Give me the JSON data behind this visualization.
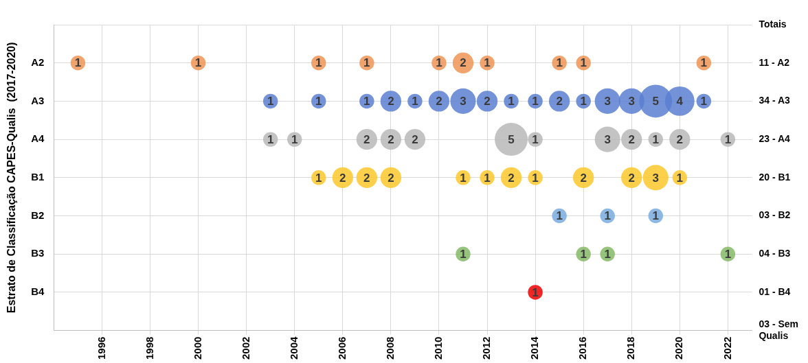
{
  "chart_data": {
    "type": "bubble",
    "orientation": "horizontal",
    "ylabel": "Estrato de Classificação CAPES-Qualis  (2017-2020)",
    "xlim": [
      1994,
      2023
    ],
    "xticks": [
      1996,
      1998,
      2000,
      2002,
      2004,
      2006,
      2008,
      2010,
      2012,
      2014,
      2016,
      2018,
      2020,
      2022
    ],
    "categories": [
      null,
      "A2",
      "A3",
      "A4",
      "B1",
      "B2",
      "B3",
      "B4",
      null
    ],
    "y2_categories": [
      "Totais",
      "11 - A2",
      "34 - A3",
      "23 - A4",
      "20 - B1",
      "03 - B2",
      "04 - B3",
      "01 - B4",
      "03 - Sem Qualis"
    ],
    "grid": true,
    "legend": false,
    "series": [
      {
        "values": [
          null,
          1995,
          null,
          null,
          null,
          null,
          null,
          null,
          null
        ],
        "sizes": [
          null,
          0.2,
          null,
          null,
          null,
          null,
          null,
          null,
          null
        ],
        "colors": [
          null,
          "#ef9455",
          null,
          null,
          null,
          null,
          null,
          null,
          null
        ]
      },
      {
        "values": [
          null,
          2000,
          null,
          null,
          null,
          null,
          null,
          null,
          null
        ],
        "sizes": [
          null,
          0.2,
          null,
          null,
          null,
          null,
          null,
          null,
          null
        ],
        "colors": [
          null,
          "#ef9455",
          null,
          null,
          null,
          null,
          null,
          null,
          null
        ]
      },
      {
        "values": [
          null,
          null,
          2003,
          2003,
          null,
          null,
          null,
          null,
          null
        ],
        "sizes": [
          null,
          null,
          0.2,
          0.2,
          null,
          null,
          null,
          null,
          null
        ],
        "colors": [
          null,
          null,
          "#5a7fd0",
          "#b8b8b8",
          null,
          null,
          null,
          null,
          null
        ]
      },
      {
        "values": [
          null,
          null,
          null,
          2004,
          null,
          null,
          null,
          null,
          null
        ],
        "sizes": [
          null,
          null,
          null,
          0.2,
          null,
          null,
          null,
          null,
          null
        ],
        "colors": [
          null,
          null,
          null,
          "#b8b8b8",
          null,
          null,
          null,
          null,
          null
        ]
      },
      {
        "values": [
          null,
          2005,
          2005,
          null,
          2005,
          null,
          null,
          null,
          null
        ],
        "sizes": [
          null,
          0.2,
          0.2,
          null,
          0.2,
          null,
          null,
          null,
          null
        ],
        "colors": [
          null,
          "#ef9455",
          "#5a7fd0",
          null,
          "#fdc82c",
          null,
          null,
          null,
          null
        ]
      },
      {
        "values": [
          null,
          null,
          null,
          null,
          2006,
          null,
          null,
          null,
          null
        ],
        "sizes": [
          null,
          null,
          null,
          null,
          0.4,
          null,
          null,
          null,
          null
        ],
        "colors": [
          null,
          null,
          null,
          null,
          "#fdc82c",
          null,
          null,
          null,
          null
        ]
      },
      {
        "values": [
          null,
          2007,
          2007,
          2007,
          2007,
          null,
          null,
          null,
          null
        ],
        "sizes": [
          null,
          0.2,
          0.2,
          0.4,
          0.4,
          null,
          null,
          null,
          null
        ],
        "colors": [
          null,
          "#ef9455",
          "#5a7fd0",
          "#b8b8b8",
          "#fdc82c",
          null,
          null,
          null,
          null
        ]
      },
      {
        "values": [
          null,
          null,
          2008,
          2008,
          2008,
          null,
          null,
          null,
          null
        ],
        "sizes": [
          null,
          null,
          0.4,
          0.4,
          0.4,
          null,
          null,
          null,
          null
        ],
        "colors": [
          null,
          null,
          "#5a7fd0",
          "#b8b8b8",
          "#fdc82c",
          null,
          null,
          null,
          null
        ]
      },
      {
        "values": [
          null,
          null,
          2009,
          2009,
          null,
          null,
          null,
          null,
          null
        ],
        "sizes": [
          null,
          null,
          0.2,
          0.4,
          null,
          null,
          null,
          null,
          null
        ],
        "colors": [
          null,
          null,
          "#5a7fd0",
          "#b8b8b8",
          null,
          null,
          null,
          null,
          null
        ]
      },
      {
        "values": [
          null,
          2010,
          2010,
          null,
          null,
          null,
          null,
          null,
          null
        ],
        "sizes": [
          null,
          0.2,
          0.4,
          null,
          null,
          null,
          null,
          null,
          null
        ],
        "colors": [
          null,
          "#ef9455",
          "#5a7fd0",
          null,
          null,
          null,
          null,
          null,
          null
        ]
      },
      {
        "values": [
          null,
          2011,
          2011,
          null,
          2011,
          null,
          2011,
          null,
          null
        ],
        "sizes": [
          null,
          0.4,
          0.6,
          null,
          0.2,
          null,
          0.2,
          null,
          null
        ],
        "colors": [
          null,
          "#ef9455",
          "#5a7fd0",
          null,
          "#fdc82c",
          null,
          "#84ba65",
          null,
          null
        ]
      },
      {
        "values": [
          null,
          2012,
          2012,
          null,
          2012,
          null,
          null,
          null,
          null
        ],
        "sizes": [
          null,
          0.2,
          0.4,
          null,
          0.2,
          null,
          null,
          null,
          null
        ],
        "colors": [
          null,
          "#ef9455",
          "#5a7fd0",
          null,
          "#fdc82c",
          null,
          null,
          null,
          null
        ]
      },
      {
        "values": [
          null,
          null,
          2013,
          2013,
          2013,
          null,
          null,
          null,
          null
        ],
        "sizes": [
          null,
          null,
          0.2,
          1,
          0.4,
          null,
          null,
          null,
          null
        ],
        "colors": [
          null,
          null,
          "#5a7fd0",
          "#b8b8b8",
          "#fdc82c",
          null,
          null,
          null,
          null
        ]
      },
      {
        "values": [
          null,
          null,
          2014,
          2014,
          2014,
          null,
          null,
          2014,
          null
        ],
        "sizes": [
          null,
          null,
          0.2,
          0.2,
          0.2,
          null,
          null,
          0.2,
          null
        ],
        "colors": [
          null,
          null,
          "#5a7fd0",
          "#b8b8b8",
          "#fdc82c",
          null,
          null,
          "#ee0000",
          null
        ]
      },
      {
        "values": [
          null,
          2015,
          2015,
          null,
          null,
          2015,
          null,
          null,
          null
        ],
        "sizes": [
          null,
          0.2,
          0.4,
          null,
          null,
          0.2,
          null,
          null,
          null
        ],
        "colors": [
          null,
          "#ef9455",
          "#5a7fd0",
          null,
          null,
          "#79acdf",
          null,
          null,
          null
        ]
      },
      {
        "values": [
          null,
          2016,
          2016,
          null,
          2016,
          null,
          2016,
          null,
          null
        ],
        "sizes": [
          null,
          0.2,
          0.2,
          null,
          0.4,
          null,
          0.2,
          null,
          null
        ],
        "colors": [
          null,
          "#ef9455",
          "#5a7fd0",
          null,
          "#fdc82c",
          null,
          "#84ba65",
          null,
          null
        ]
      },
      {
        "values": [
          null,
          null,
          2017,
          2017,
          null,
          2017,
          2017,
          null,
          null
        ],
        "sizes": [
          null,
          null,
          0.6,
          0.6,
          null,
          0.2,
          0.2,
          null,
          null
        ],
        "colors": [
          null,
          null,
          "#5a7fd0",
          "#b8b8b8",
          null,
          "#79acdf",
          "#84ba65",
          null,
          null
        ]
      },
      {
        "values": [
          null,
          null,
          2018,
          2018,
          2018,
          null,
          null,
          null,
          null
        ],
        "sizes": [
          null,
          null,
          0.6,
          0.4,
          0.4,
          null,
          null,
          null,
          null
        ],
        "colors": [
          null,
          null,
          "#5a7fd0",
          "#b8b8b8",
          "#fdc82c",
          null,
          null,
          null,
          null
        ]
      },
      {
        "values": [
          null,
          null,
          2019,
          2019,
          2019,
          2019,
          null,
          null,
          null
        ],
        "sizes": [
          null,
          null,
          1,
          0.2,
          0.6,
          0.2,
          null,
          null,
          null
        ],
        "colors": [
          null,
          null,
          "#5a7fd0",
          "#b8b8b8",
          "#fdc82c",
          "#79acdf",
          null,
          null,
          null
        ]
      },
      {
        "values": [
          null,
          null,
          2020,
          2020,
          2020,
          null,
          null,
          null,
          null
        ],
        "sizes": [
          null,
          null,
          0.8,
          0.4,
          0.2,
          null,
          null,
          null,
          null
        ],
        "colors": [
          null,
          null,
          "#5a7fd0",
          "#b8b8b8",
          "#fdc82c",
          null,
          null,
          null,
          null
        ]
      },
      {
        "values": [
          null,
          2021,
          2021,
          null,
          null,
          null,
          null,
          null,
          null
        ],
        "sizes": [
          null,
          0.2,
          0.2,
          null,
          null,
          null,
          null,
          null,
          null
        ],
        "colors": [
          null,
          "#ef9455",
          "#5a7fd0",
          null,
          null,
          null,
          null,
          null,
          null
        ]
      },
      {
        "values": [
          null,
          null,
          null,
          2022,
          null,
          null,
          2022,
          null,
          null
        ],
        "sizes": [
          null,
          null,
          null,
          0.2,
          null,
          null,
          0.2,
          null,
          null
        ],
        "colors": [
          null,
          null,
          null,
          "#b8b8b8",
          null,
          null,
          "#84ba65",
          null,
          null
        ]
      }
    ],
    "annotations": [
      {
        "text": "1",
        "x": 1995,
        "y": "A2"
      },
      {
        "text": "1",
        "x": 2000,
        "y": "A2"
      },
      {
        "text": "1",
        "x": 2005,
        "y": "A2"
      },
      {
        "text": "1",
        "x": 2007,
        "y": "A2"
      },
      {
        "text": "1",
        "x": 2010,
        "y": "A2"
      },
      {
        "text": "2",
        "x": 2011,
        "y": "A2"
      },
      {
        "text": "1",
        "x": 2012,
        "y": "A2"
      },
      {
        "text": "1",
        "x": 2015,
        "y": "A2"
      },
      {
        "text": "1",
        "x": 2016,
        "y": "A2"
      },
      {
        "text": "1",
        "x": 2021,
        "y": "A2"
      },
      {
        "text": "1",
        "x": 2003,
        "y": "A3"
      },
      {
        "text": "1",
        "x": 2005,
        "y": "A3"
      },
      {
        "text": "1",
        "x": 2007,
        "y": "A3"
      },
      {
        "text": "2",
        "x": 2008,
        "y": "A3"
      },
      {
        "text": "1",
        "x": 2009,
        "y": "A3"
      },
      {
        "text": "2",
        "x": 2010,
        "y": "A3"
      },
      {
        "text": "3",
        "x": 2011,
        "y": "A3"
      },
      {
        "text": "2",
        "x": 2012,
        "y": "A3"
      },
      {
        "text": "1",
        "x": 2013,
        "y": "A3"
      },
      {
        "text": "1",
        "x": 2014,
        "y": "A3"
      },
      {
        "text": "2",
        "x": 2015,
        "y": "A3"
      },
      {
        "text": "1",
        "x": 2016,
        "y": "A3"
      },
      {
        "text": "3",
        "x": 2017,
        "y": "A3"
      },
      {
        "text": "3",
        "x": 2018,
        "y": "A3"
      },
      {
        "text": "5",
        "x": 2019,
        "y": "A3"
      },
      {
        "text": "4",
        "x": 2020,
        "y": "A3"
      },
      {
        "text": "1",
        "x": 2021,
        "y": "A3"
      },
      {
        "text": "1",
        "x": 2003,
        "y": "A4"
      },
      {
        "text": "1",
        "x": 2004,
        "y": "A4"
      },
      {
        "text": "2",
        "x": 2007,
        "y": "A4"
      },
      {
        "text": "2",
        "x": 2008,
        "y": "A4"
      },
      {
        "text": "2",
        "x": 2009,
        "y": "A4"
      },
      {
        "text": "5",
        "x": 2013,
        "y": "A4"
      },
      {
        "text": "1",
        "x": 2014,
        "y": "A4"
      },
      {
        "text": "3",
        "x": 2017,
        "y": "A4"
      },
      {
        "text": "2",
        "x": 2018,
        "y": "A4"
      },
      {
        "text": "1",
        "x": 2019,
        "y": "A4"
      },
      {
        "text": "2",
        "x": 2020,
        "y": "A4"
      },
      {
        "text": "1",
        "x": 2022,
        "y": "A4"
      },
      {
        "text": "1",
        "x": 2005,
        "y": "B1"
      },
      {
        "text": "2",
        "x": 2006,
        "y": "B1"
      },
      {
        "text": "2",
        "x": 2007,
        "y": "B1"
      },
      {
        "text": "2",
        "x": 2008,
        "y": "B1"
      },
      {
        "text": "1",
        "x": 2011,
        "y": "B1"
      },
      {
        "text": "1",
        "x": 2012,
        "y": "B1"
      },
      {
        "text": "2",
        "x": 2013,
        "y": "B1"
      },
      {
        "text": "1",
        "x": 2014,
        "y": "B1"
      },
      {
        "text": "2",
        "x": 2016,
        "y": "B1"
      },
      {
        "text": "2",
        "x": 2018,
        "y": "B1"
      },
      {
        "text": "3",
        "x": 2019,
        "y": "B1"
      },
      {
        "text": "1",
        "x": 2020,
        "y": "B1"
      },
      {
        "text": "1",
        "x": 2015,
        "y": "B2"
      },
      {
        "text": "1",
        "x": 2017,
        "y": "B2"
      },
      {
        "text": "1",
        "x": 2019,
        "y": "B2"
      },
      {
        "text": "1",
        "x": 2011,
        "y": "B3"
      },
      {
        "text": "1",
        "x": 2016,
        "y": "B3"
      },
      {
        "text": "1",
        "x": 2017,
        "y": "B3"
      },
      {
        "text": "1",
        "x": 2022,
        "y": "B3"
      },
      {
        "text": "1",
        "x": 2014,
        "y": "B4"
      }
    ]
  }
}
